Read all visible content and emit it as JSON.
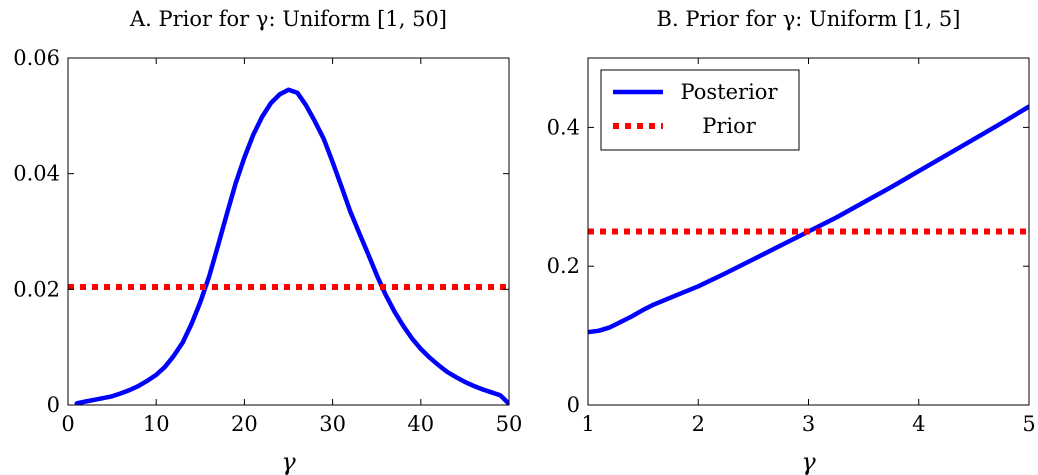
{
  "chart_data": [
    {
      "type": "line",
      "title": "A. Prior for γ: Uniform [1, 50]",
      "xlabel": "γ",
      "ylabel": "",
      "xlim": [
        0,
        50
      ],
      "ylim": [
        0,
        0.06
      ],
      "xticks": [
        0,
        10,
        20,
        30,
        40,
        50
      ],
      "xtick_labels": [
        "0",
        "10",
        "20",
        "30",
        "40",
        "50"
      ],
      "yticks": [
        0,
        0.02,
        0.04,
        0.06
      ],
      "ytick_labels": [
        "0",
        "0.02",
        "0.04",
        "0.06"
      ],
      "grid": false,
      "legend": null,
      "series": [
        {
          "color": "#0000ff",
          "style": "solid",
          "x": [
            1,
            2,
            3,
            4,
            5,
            6,
            7,
            8,
            9,
            10,
            11,
            12,
            13,
            14,
            15,
            16,
            17,
            18,
            19,
            20,
            21,
            22,
            23,
            24,
            25,
            26,
            27,
            28,
            29,
            30,
            31,
            32,
            33,
            34,
            35,
            36,
            37,
            38,
            39,
            40,
            41,
            42,
            43,
            44,
            45,
            46,
            47,
            48,
            49,
            50
          ],
          "y": [
            0.0003,
            0.0006,
            0.0009,
            0.0012,
            0.0015,
            0.002,
            0.0026,
            0.0033,
            0.0042,
            0.0052,
            0.0066,
            0.0085,
            0.0108,
            0.014,
            0.0178,
            0.0222,
            0.0275,
            0.033,
            0.0383,
            0.0428,
            0.0467,
            0.0498,
            0.0522,
            0.0537,
            0.0545,
            0.054,
            0.0518,
            0.049,
            0.046,
            0.042,
            0.0378,
            0.0335,
            0.0298,
            0.0262,
            0.0225,
            0.0191,
            0.0162,
            0.0137,
            0.0115,
            0.0097,
            0.0082,
            0.0069,
            0.0057,
            0.0048,
            0.004,
            0.0033,
            0.0027,
            0.0022,
            0.0017,
            0.0002
          ]
        },
        {
          "color": "#ff0000",
          "style": "dotted",
          "x": [
            0,
            50
          ],
          "y": [
            0.0204,
            0.0204
          ]
        }
      ]
    },
    {
      "type": "line",
      "title": "B. Prior for γ: Uniform [1, 5]",
      "xlabel": "γ",
      "ylabel": "",
      "xlim": [
        1,
        5
      ],
      "ylim": [
        0,
        0.5
      ],
      "xticks": [
        1,
        2,
        3,
        4,
        5
      ],
      "xtick_labels": [
        "1",
        "2",
        "3",
        "4",
        "5"
      ],
      "yticks": [
        0,
        0.2,
        0.4
      ],
      "ytick_labels": [
        "0",
        "0.2",
        "0.4"
      ],
      "grid": false,
      "legend": "top-left",
      "series": [
        {
          "name": "Posterior",
          "color": "#0000ff",
          "style": "solid",
          "x": [
            1,
            1.1,
            1.2,
            1.3,
            1.4,
            1.5,
            1.6,
            1.8,
            2,
            2.25,
            2.5,
            2.75,
            3,
            3.25,
            3.5,
            3.75,
            4,
            4.25,
            4.5,
            4.75,
            5
          ],
          "y": [
            0.105,
            0.107,
            0.112,
            0.12,
            0.128,
            0.137,
            0.145,
            0.158,
            0.171,
            0.19,
            0.21,
            0.23,
            0.25,
            0.27,
            0.292,
            0.314,
            0.337,
            0.36,
            0.383,
            0.406,
            0.43
          ]
        },
        {
          "name": "Prior",
          "color": "#ff0000",
          "style": "dotted",
          "x": [
            1,
            5
          ],
          "y": [
            0.25,
            0.25
          ]
        }
      ]
    }
  ]
}
